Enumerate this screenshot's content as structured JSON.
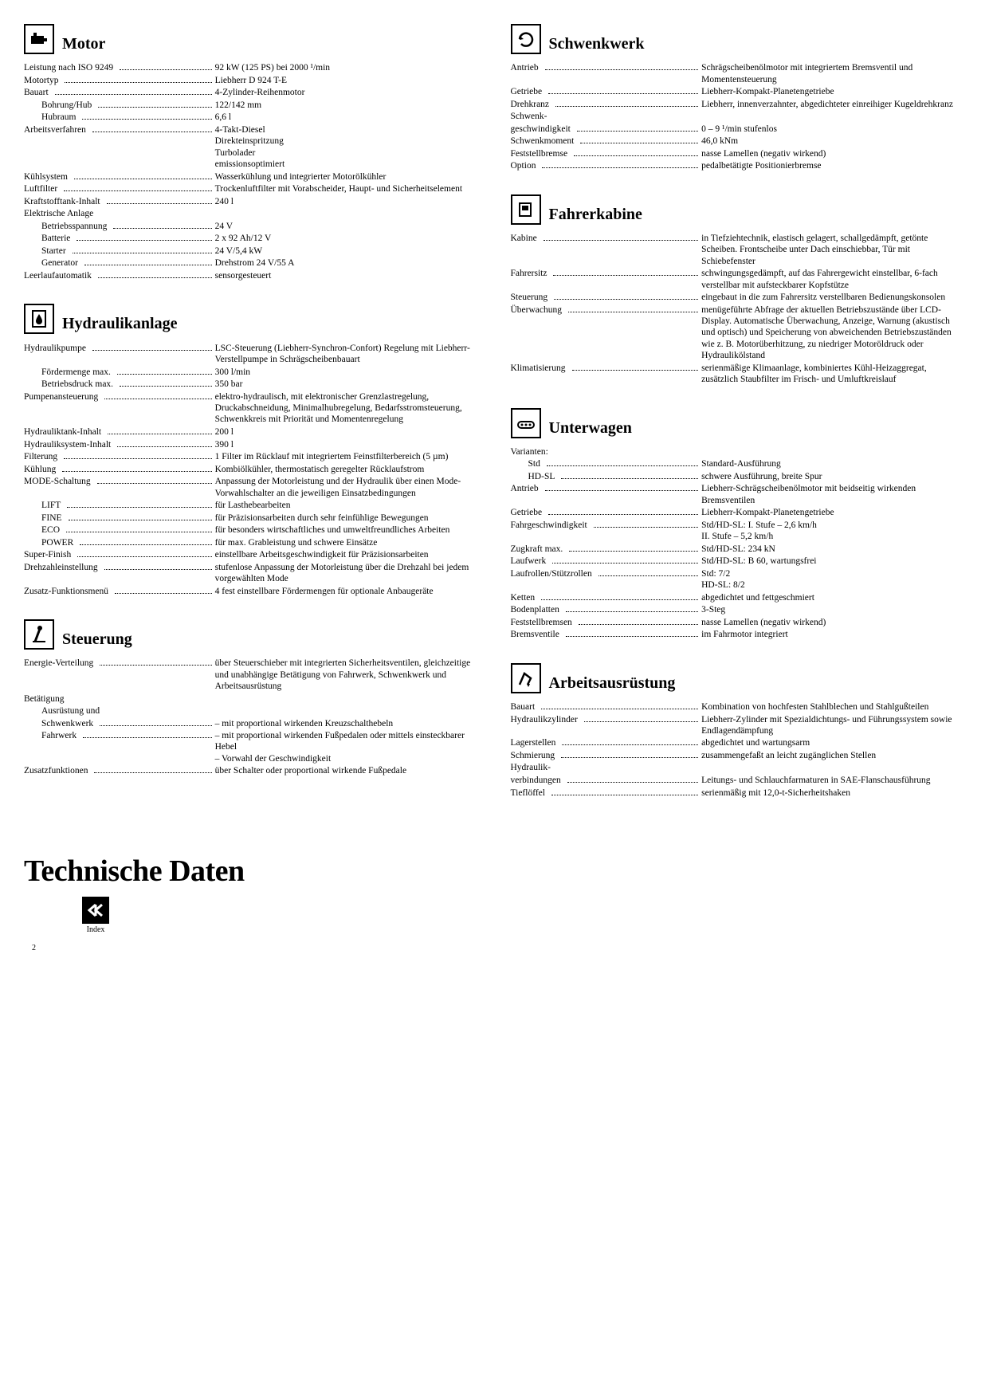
{
  "footer": {
    "title": "Technische Daten",
    "index_label": "Index",
    "page": "2"
  },
  "sections": {
    "motor": {
      "title": "Motor",
      "rows": [
        {
          "label": "Leistung nach ISO 9249",
          "value": "92 kW (125 PS) bei 2000 ¹/min",
          "indent": 0
        },
        {
          "label": "Motortyp",
          "value": "Liebherr D 924 T-E",
          "indent": 0
        },
        {
          "label": "Bauart",
          "value": "4-Zylinder-Reihenmotor",
          "indent": 0
        },
        {
          "label": "Bohrung/Hub",
          "value": "122/142 mm",
          "indent": 1
        },
        {
          "label": "Hubraum",
          "value": "6,6 l",
          "indent": 1
        },
        {
          "label": "Arbeitsverfahren",
          "value": "4-Takt-Diesel\nDirekteinspritzung\nTurbolader\nemissionsoptimiert",
          "indent": 0
        },
        {
          "label": "Kühlsystem",
          "value": "Wasserkühlung und integrierter Motorölkühler",
          "indent": 0
        },
        {
          "label": "Luftfilter",
          "value": "Trockenluftfilter mit Vorabscheider, Haupt- und Sicherheitselement",
          "indent": 0
        },
        {
          "label": "Kraftstofftank-Inhalt",
          "value": "240 l",
          "indent": 0
        },
        {
          "label": "Elektrische Anlage",
          "value": "",
          "indent": 0,
          "nodots": true
        },
        {
          "label": "Betriebsspannung",
          "value": "24 V",
          "indent": 1
        },
        {
          "label": "Batterie",
          "value": "2 x 92 Ah/12 V",
          "indent": 1
        },
        {
          "label": "Starter",
          "value": "24 V/5,4 kW",
          "indent": 1
        },
        {
          "label": "Generator",
          "value": "Drehstrom 24 V/55 A",
          "indent": 1
        },
        {
          "label": "Leerlaufautomatik",
          "value": "sensorgesteuert",
          "indent": 0
        }
      ]
    },
    "hydraulik": {
      "title": "Hydraulikanlage",
      "rows": [
        {
          "label": "Hydraulikpumpe",
          "value": "LSC-Steuerung (Liebherr-Synchron-Confort) Regelung mit Liebherr-Verstellpumpe in Schrägscheibenbauart",
          "indent": 0
        },
        {
          "label": "Fördermenge max.",
          "value": "300 l/min",
          "indent": 1
        },
        {
          "label": "Betriebsdruck max.",
          "value": "350 bar",
          "indent": 1
        },
        {
          "label": "Pumpenansteuerung",
          "value": "elektro-hydraulisch, mit elektronischer Grenzlastregelung, Druckabschneidung, Minimalhubregelung, Bedarfsstromsteuerung, Schwenkkreis mit Priorität und Momentenregelung",
          "indent": 0
        },
        {
          "label": "Hydrauliktank-Inhalt",
          "value": "200 l",
          "indent": 0
        },
        {
          "label": "Hydrauliksystem-Inhalt",
          "value": "390 l",
          "indent": 0
        },
        {
          "label": "Filterung",
          "value": "1 Filter im Rücklauf mit integriertem Feinstfilterbereich (5 µm)",
          "indent": 0
        },
        {
          "label": "Kühlung",
          "value": "Kombiölkühler, thermostatisch geregelter Rücklaufstrom",
          "indent": 0
        },
        {
          "label": "MODE-Schaltung",
          "value": "Anpassung der Motorleistung und der Hydraulik über einen Mode-Vorwahlschalter an die jeweiligen Einsatzbedingungen",
          "indent": 0
        },
        {
          "label": "LIFT",
          "value": "für Lasthebearbeiten",
          "indent": 1
        },
        {
          "label": "FINE",
          "value": "für Präzisionsarbeiten durch sehr feinfühlige Bewegungen",
          "indent": 1
        },
        {
          "label": "ECO",
          "value": "für besonders wirtschaftliches und umweltfreundliches Arbeiten",
          "indent": 1
        },
        {
          "label": "POWER",
          "value": "für max. Grableistung und schwere Einsätze",
          "indent": 1
        },
        {
          "label": "Super-Finish",
          "value": "einstellbare Arbeitsgeschwindigkeit für Präzisionsarbeiten",
          "indent": 0
        },
        {
          "label": "Drehzahleinstellung",
          "value": "stufenlose Anpassung der Motorleistung über die Drehzahl bei jedem vorgewählten Mode",
          "indent": 0
        },
        {
          "label": "Zusatz-Funktionsmenü",
          "value": "4 fest einstellbare Fördermengen für optionale Anbaugeräte",
          "indent": 0
        }
      ]
    },
    "steuerung": {
      "title": "Steuerung",
      "rows": [
        {
          "label": "Energie-Verteilung",
          "value": "über Steuerschieber mit integrierten Sicherheitsventilen, gleichzeitige und unabhängige Betätigung von Fahrwerk, Schwenkwerk und Arbeitsausrüstung",
          "indent": 0
        },
        {
          "label": "Betätigung",
          "value": "",
          "indent": 0,
          "nodots": true
        },
        {
          "label": "Ausrüstung und",
          "value": "",
          "indent": 1,
          "nodots": true
        },
        {
          "label": "Schwenkwerk",
          "value": "– mit proportional wirkenden Kreuzschalthebeln",
          "indent": 1
        },
        {
          "label": "Fahrwerk",
          "value": "– mit proportional wirkenden Fußpedalen oder mittels einsteckbarer Hebel\n– Vorwahl der Geschwindigkeit",
          "indent": 1
        },
        {
          "label": "Zusatzfunktionen",
          "value": "über Schalter oder proportional wirkende Fußpedale",
          "indent": 0
        }
      ]
    },
    "schwenkwerk": {
      "title": "Schwenkwerk",
      "rows": [
        {
          "label": "Antrieb",
          "value": "Schrägscheibenölmotor mit integriertem Bremsventil und Momentensteuerung",
          "indent": 0
        },
        {
          "label": "Getriebe",
          "value": "Liebherr-Kompakt-Planetengetriebe",
          "indent": 0
        },
        {
          "label": "Drehkranz",
          "value": "Liebherr, innenverzahnter, abgedichteter einreihiger Kugeldrehkranz",
          "indent": 0
        },
        {
          "label": "Schwenk-",
          "value": "",
          "indent": 0,
          "nodots": true
        },
        {
          "label": "geschwindigkeit",
          "value": "0 – 9 ¹/min stufenlos",
          "indent": 0
        },
        {
          "label": "Schwenkmoment",
          "value": "46,0 kNm",
          "indent": 0
        },
        {
          "label": "Feststellbremse",
          "value": "nasse Lamellen (negativ wirkend)",
          "indent": 0
        },
        {
          "label": "Option",
          "value": "pedalbetätigte Positionierbremse",
          "indent": 0
        }
      ]
    },
    "kabine": {
      "title": "Fahrerkabine",
      "rows": [
        {
          "label": "Kabine",
          "value": "in Tiefziehtechnik, elastisch gelagert, schallgedämpft, getönte Scheiben. Frontscheibe unter Dach einschiebbar, Tür mit Schiebefenster",
          "indent": 0
        },
        {
          "label": "Fahrersitz",
          "value": "schwingungsgedämpft, auf das Fahrergewicht einstellbar, 6-fach verstellbar mit aufsteckbarer Kopfstütze",
          "indent": 0
        },
        {
          "label": "Steuerung",
          "value": "eingebaut in die zum Fahrersitz verstellbaren Bedienungskonsolen",
          "indent": 0
        },
        {
          "label": "Überwachung",
          "value": "menügeführte Abfrage der aktuellen Betriebszustände über LCD-Display. Automatische Überwachung, Anzeige, Warnung (akustisch und optisch) und Speicherung von abweichenden Betriebszuständen wie z. B. Motorüberhitzung, zu niedriger Motoröldruck oder Hydraulikölstand",
          "indent": 0
        },
        {
          "label": "Klimatisierung",
          "value": "serienmäßige Klimaanlage, kombiniertes Kühl-Heizaggregat, zusätzlich Staubfilter im Frisch- und Umluftkreislauf",
          "indent": 0
        }
      ]
    },
    "unterwagen": {
      "title": "Unterwagen",
      "rows": [
        {
          "label": "Varianten:",
          "value": "",
          "indent": 0,
          "nodots": true
        },
        {
          "label": "Std",
          "value": "Standard-Ausführung",
          "indent": 1
        },
        {
          "label": "HD-SL",
          "value": "schwere Ausführung, breite Spur",
          "indent": 1
        },
        {
          "label": "Antrieb",
          "value": "Liebherr-Schrägscheibenölmotor mit beidseitig wirkenden Bremsventilen",
          "indent": 0
        },
        {
          "label": "Getriebe",
          "value": "Liebherr-Kompakt-Planetengetriebe",
          "indent": 0
        },
        {
          "label": "Fahrgeschwindigkeit",
          "value": "Std/HD-SL: I.  Stufe – 2,6 km/h\n                   II. Stufe – 5,2 km/h",
          "indent": 0
        },
        {
          "label": "Zugkraft max.",
          "value": "Std/HD-SL: 234 kN",
          "indent": 0
        },
        {
          "label": "Laufwerk",
          "value": "Std/HD-SL: B 60, wartungsfrei",
          "indent": 0
        },
        {
          "label": "Laufrollen/Stützrollen",
          "value": "Std:      7/2\nHD-SL: 8/2",
          "indent": 0
        },
        {
          "label": "Ketten",
          "value": "abgedichtet und fettgeschmiert",
          "indent": 0
        },
        {
          "label": "Bodenplatten",
          "value": "3-Steg",
          "indent": 0
        },
        {
          "label": "Feststellbremsen",
          "value": "nasse Lamellen (negativ wirkend)",
          "indent": 0
        },
        {
          "label": "Bremsventile",
          "value": "im Fahrmotor integriert",
          "indent": 0
        }
      ]
    },
    "arbeit": {
      "title": "Arbeitsausrüstung",
      "rows": [
        {
          "label": "Bauart",
          "value": "Kombination von hochfesten Stahlblechen und Stahlgußteilen",
          "indent": 0
        },
        {
          "label": "Hydraulikzylinder",
          "value": "Liebherr-Zylinder mit Spezialdichtungs- und Führungssystem sowie Endlagendämpfung",
          "indent": 0
        },
        {
          "label": "Lagerstellen",
          "value": "abgedichtet und wartungsarm",
          "indent": 0
        },
        {
          "label": "Schmierung",
          "value": "zusammengefaßt an leicht zugänglichen Stellen",
          "indent": 0
        },
        {
          "label": "Hydraulik-",
          "value": "",
          "indent": 0,
          "nodots": true
        },
        {
          "label": "verbindungen",
          "value": "Leitungs- und Schlauchfarmaturen in SAE-Flanschausführung",
          "indent": 0
        },
        {
          "label": "Tieflöffel",
          "value": "serienmäßig mit 12,0-t-Sicherheitshaken",
          "indent": 0
        }
      ]
    }
  },
  "icons": {
    "motor": "engine",
    "hydraulik": "drop",
    "steuerung": "lever",
    "schwenkwerk": "rotate",
    "kabine": "cab",
    "unterwagen": "track",
    "arbeit": "arm"
  }
}
